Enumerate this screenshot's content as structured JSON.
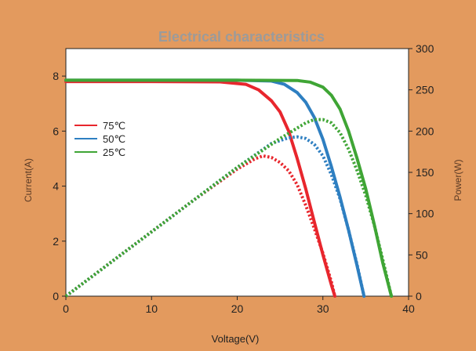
{
  "chart_data": {
    "type": "line",
    "title": "Electrical characteristics",
    "xlabel": "Voltage(V)",
    "ylabel_left": "Current(A)",
    "ylabel_right": "Power(W)",
    "xlim": [
      0,
      40
    ],
    "ylim_left": [
      0,
      9
    ],
    "ylim_right": [
      0,
      300
    ],
    "x_ticks": [
      0,
      10,
      20,
      30,
      40
    ],
    "y_left_ticks": [
      0,
      2,
      4,
      6,
      8
    ],
    "y_right_ticks": [
      0,
      50,
      100,
      150,
      200,
      250,
      300
    ],
    "grid": false,
    "legend_position": "left",
    "legend": [
      {
        "label": "75℃",
        "color": "#e8262d"
      },
      {
        "label": "50℃",
        "color": "#2e7fc1"
      },
      {
        "label": "25℃",
        "color": "#3fa535"
      }
    ],
    "series": [
      {
        "name": "75℃",
        "color": "#e8262d",
        "current": {
          "x": [
            0,
            10,
            18,
            21,
            22.5,
            24,
            25,
            26,
            27,
            28,
            29,
            30,
            31,
            31.4
          ],
          "y": [
            7.8,
            7.8,
            7.79,
            7.7,
            7.5,
            7.1,
            6.7,
            6.0,
            5.0,
            3.9,
            2.7,
            1.5,
            0.4,
            0
          ]
        },
        "power": {
          "x": [
            0,
            5,
            10,
            15,
            20,
            22,
            23,
            24,
            25,
            26,
            27,
            28,
            29,
            30,
            31,
            31.4
          ],
          "y": [
            0,
            39,
            78,
            117,
            154,
            166,
            170,
            168,
            162,
            152,
            135,
            110,
            82,
            52,
            17,
            0
          ]
        }
      },
      {
        "name": "50℃",
        "color": "#2e7fc1",
        "current": {
          "x": [
            0,
            10,
            20,
            24,
            25.5,
            27,
            28,
            29,
            30,
            31,
            32,
            33,
            34,
            34.8
          ],
          "y": [
            7.85,
            7.85,
            7.85,
            7.82,
            7.7,
            7.4,
            7.05,
            6.5,
            5.7,
            4.7,
            3.6,
            2.4,
            1.1,
            0
          ]
        },
        "power": {
          "x": [
            0,
            5,
            10,
            15,
            20,
            24,
            26,
            27,
            28,
            29,
            30,
            31,
            32,
            33,
            34,
            34.8
          ],
          "y": [
            0,
            39,
            78,
            117,
            156,
            185,
            192,
            193,
            191,
            184,
            170,
            147,
            118,
            80,
            38,
            0
          ]
        }
      },
      {
        "name": "25℃",
        "color": "#3fa535",
        "current": {
          "x": [
            0,
            10,
            20,
            27,
            28.5,
            30,
            31,
            32,
            33,
            34,
            35,
            36,
            37,
            38
          ],
          "y": [
            7.85,
            7.85,
            7.85,
            7.84,
            7.78,
            7.6,
            7.3,
            6.8,
            6.0,
            5.0,
            3.9,
            2.6,
            1.2,
            0
          ]
        },
        "power": {
          "x": [
            0,
            5,
            10,
            15,
            20,
            25,
            28,
            29,
            30,
            31,
            32,
            33,
            34,
            35,
            36,
            37,
            38
          ],
          "y": [
            0,
            39,
            78,
            117,
            156,
            191,
            210,
            214,
            214,
            210,
            198,
            178,
            152,
            122,
            86,
            44,
            0
          ]
        }
      }
    ]
  }
}
